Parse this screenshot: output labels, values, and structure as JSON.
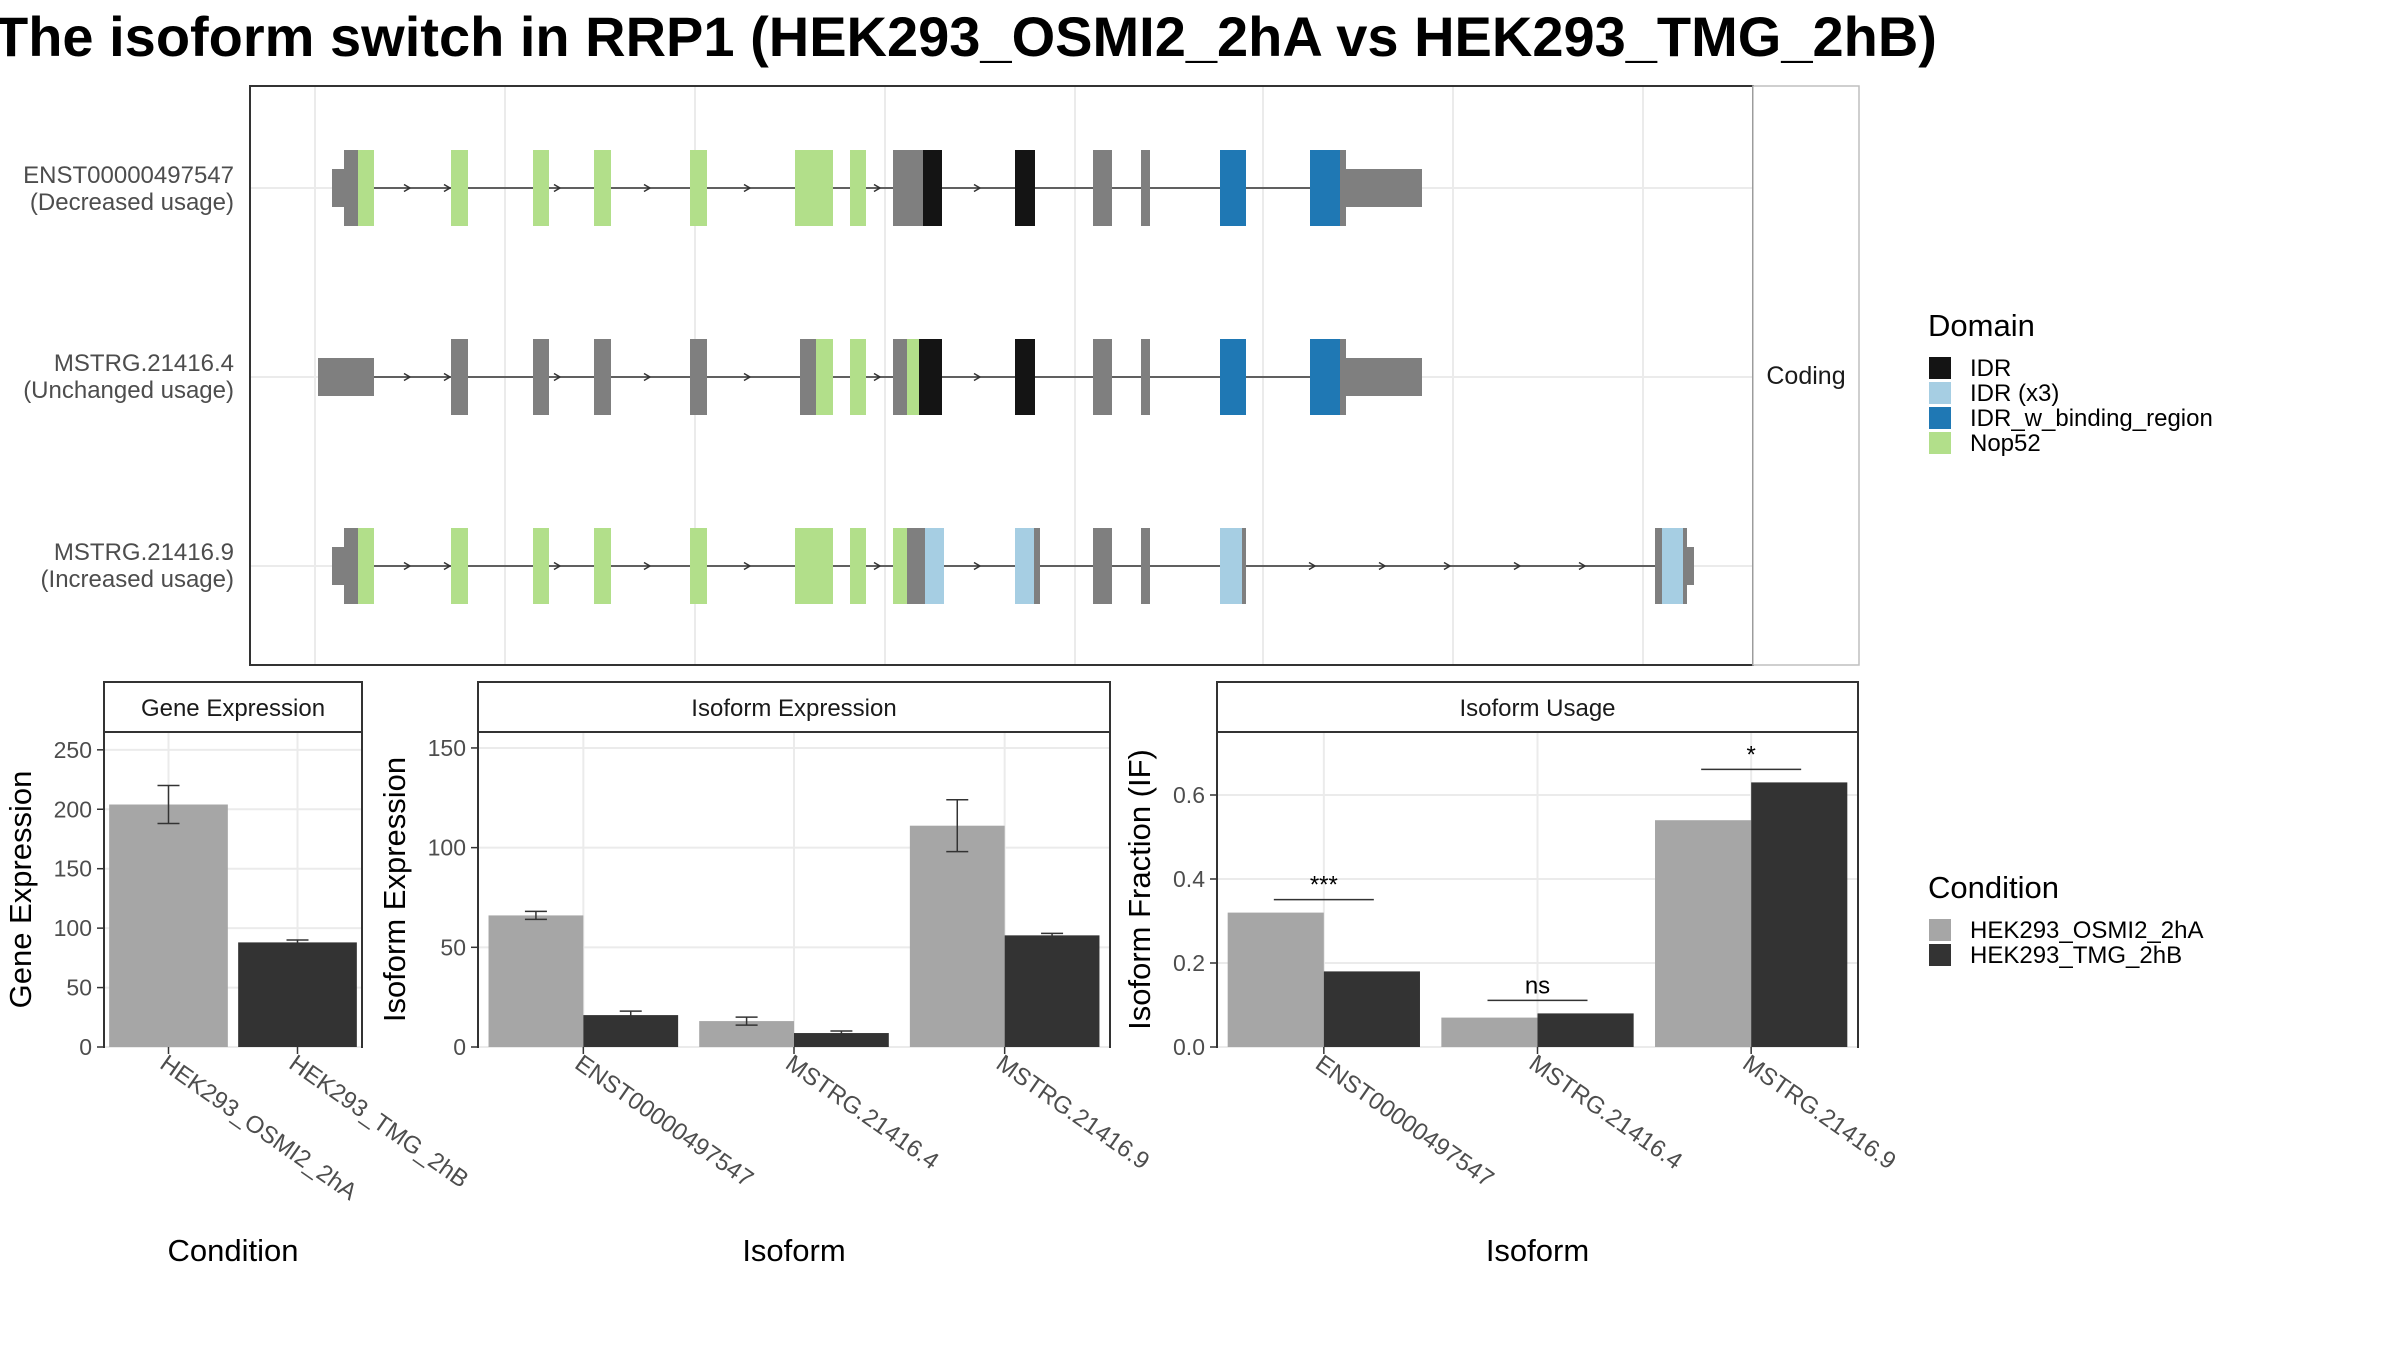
{
  "title": "The isoform switch in RRP1 (HEK293_OSMI2_2hA vs HEK293_TMG_2hB)",
  "isoform_panel": {
    "strip_label": "Coding",
    "isoforms": [
      {
        "id": "ENST00000497547",
        "usage": "(Decreased usage)"
      },
      {
        "id": "MSTRG.21416.4",
        "usage": "(Unchanged usage)"
      },
      {
        "id": "MSTRG.21416.9",
        "usage": "(Increased usage)"
      }
    ]
  },
  "domain_legend": {
    "title": "Domain",
    "items": [
      {
        "label": "IDR",
        "color": "#141414"
      },
      {
        "label": "IDR (x3)",
        "color": "#a6cee3"
      },
      {
        "label": "IDR_w_binding_region",
        "color": "#1f78b4"
      },
      {
        "label": "Nop52",
        "color": "#b2df8a"
      }
    ]
  },
  "condition_legend": {
    "title": "Condition",
    "items": [
      {
        "label": "HEK293_OSMI2_2hA",
        "color": "#a6a6a6"
      },
      {
        "label": "HEK293_TMG_2hB",
        "color": "#333333"
      }
    ]
  },
  "chart_data": [
    {
      "type": "bar",
      "title": "Gene Expression",
      "xlabel": "Condition",
      "ylabel": "Gene Expression",
      "categories": [
        "HEK293_OSMI2_2hA",
        "HEK293_TMG_2hB"
      ],
      "values": [
        204,
        88
      ],
      "errors": [
        [
          188,
          220
        ],
        [
          86,
          90
        ]
      ],
      "colors": [
        "#a6a6a6",
        "#333333"
      ],
      "ylim": [
        0,
        265
      ],
      "yticks": [
        0,
        50,
        100,
        150,
        200,
        250
      ]
    },
    {
      "type": "bar",
      "title": "Isoform Expression",
      "xlabel": "Isoform",
      "ylabel": "Isoform Expression",
      "categories": [
        "ENST00000497547",
        "MSTRG.21416.4",
        "MSTRG.21416.9"
      ],
      "series": [
        {
          "name": "HEK293_OSMI2_2hA",
          "values": [
            66,
            13,
            111
          ],
          "errors": [
            [
              64,
              68
            ],
            [
              11,
              15
            ],
            [
              98,
              124
            ]
          ]
        },
        {
          "name": "HEK293_TMG_2hB",
          "values": [
            16,
            7,
            56
          ],
          "errors": [
            [
              14,
              18
            ],
            [
              6,
              8
            ],
            [
              55,
              57
            ]
          ]
        }
      ],
      "ylim": [
        0,
        158
      ],
      "yticks": [
        0,
        50,
        100,
        150
      ]
    },
    {
      "type": "bar",
      "title": "Isoform Usage",
      "xlabel": "Isoform",
      "ylabel": "Isoform Fraction (IF)",
      "categories": [
        "ENST00000497547",
        "MSTRG.21416.4",
        "MSTRG.21416.9"
      ],
      "series": [
        {
          "name": "HEK293_OSMI2_2hA",
          "values": [
            0.32,
            0.07,
            0.54
          ]
        },
        {
          "name": "HEK293_TMG_2hB",
          "values": [
            0.18,
            0.08,
            0.63
          ]
        }
      ],
      "significance": [
        "***",
        "ns",
        "*"
      ],
      "ylim": [
        0,
        0.75
      ],
      "yticks": [
        "0.0",
        "0.2",
        "0.4",
        "0.6"
      ]
    }
  ]
}
